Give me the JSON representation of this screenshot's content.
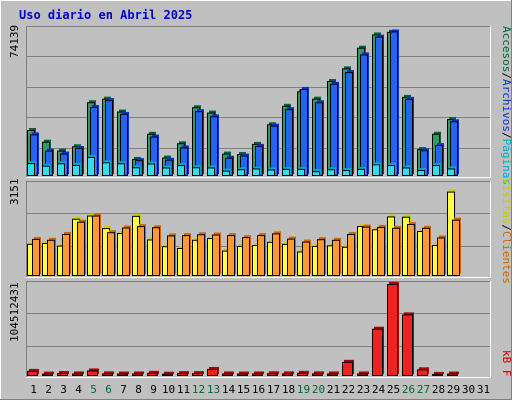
{
  "title": "Uso diario en Abril 2025",
  "colors": {
    "background": "#c0c0c0",
    "title": "#0000cc",
    "accesos_side": "#006633",
    "accesos_front": "#339966",
    "archivos_side": "#0033cc",
    "archivos_front": "#2266ee",
    "paginas_side": "#00aacc",
    "paginas_front": "#33ddee",
    "visitas_side": "#cccc00",
    "visitas_front": "#ffff44",
    "clientes_side": "#cc6600",
    "clientes_front": "#ff9933",
    "kbf_side": "#aa0000",
    "kbf_front": "#ee2222",
    "weekend_label": "#006633",
    "weekday_label": "#000000"
  },
  "chart_data": [
    {
      "type": "bar",
      "panel": "top",
      "ymax_label": "74139",
      "ylim": [
        0,
        74139
      ],
      "legend": [
        {
          "label": "Accesos",
          "color": "#006633"
        },
        {
          "label": "Archivos",
          "color": "#0033cc"
        },
        {
          "label": "Páginas",
          "color": "#00aacc"
        }
      ],
      "legend_separator": "/",
      "categories": [
        "1",
        "2",
        "3",
        "4",
        "5",
        "6",
        "7",
        "8",
        "9",
        "10",
        "11",
        "12",
        "13",
        "14",
        "15",
        "16",
        "17",
        "18",
        "19",
        "20",
        "21",
        "22",
        "23",
        "24",
        "25",
        "26",
        "27",
        "28",
        "29",
        "30",
        "31"
      ],
      "series": [
        {
          "name": "Accesos",
          "values": [
            23200,
            17300,
            12800,
            15000,
            37200,
            39000,
            32500,
            8600,
            21300,
            9300,
            16500,
            34700,
            32000,
            11300,
            11100,
            16200,
            26100,
            35400,
            42700,
            39000,
            47900,
            54300,
            64700,
            71400,
            72700,
            39900,
            13600,
            21300,
            28700,
            0,
            0
          ]
        },
        {
          "name": "Archivos",
          "values": [
            21000,
            12800,
            11300,
            14100,
            34800,
            38300,
            31300,
            8000,
            19900,
            8200,
            14400,
            32700,
            30100,
            9200,
            10300,
            15200,
            25400,
            33700,
            43900,
            37200,
            46500,
            52400,
            61300,
            70300,
            72900,
            38900,
            13000,
            15600,
            27600,
            0,
            0
          ]
        },
        {
          "name": "Páginas",
          "values": [
            6500,
            5200,
            6400,
            5600,
            9600,
            6900,
            6400,
            4400,
            6300,
            4300,
            5500,
            4400,
            4300,
            2700,
            3400,
            3800,
            3300,
            3600,
            3600,
            2400,
            3400,
            3000,
            3600,
            5900,
            5500,
            4300,
            3000,
            5500,
            3800,
            0,
            0
          ]
        }
      ]
    },
    {
      "type": "bar",
      "panel": "middle",
      "ymax_label": "3151",
      "ylim": [
        0,
        3151
      ],
      "legend": [
        {
          "label": "Visitas",
          "color": "#cccc00"
        },
        {
          "label": "Clientes",
          "color": "#cc6600"
        }
      ],
      "legend_separator": "/",
      "categories": [
        "1",
        "2",
        "3",
        "4",
        "5",
        "6",
        "7",
        "8",
        "9",
        "10",
        "11",
        "12",
        "13",
        "14",
        "15",
        "16",
        "17",
        "18",
        "19",
        "20",
        "21",
        "22",
        "23",
        "24",
        "25",
        "26",
        "27",
        "28",
        "29",
        "30",
        "31"
      ],
      "series": [
        {
          "name": "Visitas",
          "values": [
            1100,
            1130,
            1040,
            1960,
            2070,
            1640,
            1470,
            2060,
            1250,
            1020,
            960,
            1240,
            1300,
            870,
            1030,
            1060,
            1170,
            1100,
            840,
            1030,
            1050,
            1000,
            1710,
            1600,
            2040,
            2030,
            1540,
            1060,
            2890,
            0,
            0
          ]
        },
        {
          "name": "Clientes",
          "values": [
            1270,
            1240,
            1440,
            1860,
            2070,
            1500,
            1660,
            1710,
            1670,
            1390,
            1400,
            1430,
            1420,
            1400,
            1330,
            1400,
            1460,
            1280,
            1180,
            1260,
            1240,
            1440,
            1690,
            1680,
            1650,
            1780,
            1650,
            1320,
            1930,
            0,
            0
          ]
        }
      ]
    },
    {
      "type": "bar",
      "panel": "bottom",
      "ymax_label": "104512431",
      "ylim": [
        0,
        104512431
      ],
      "legend": [
        {
          "label": "kB F",
          "color": "#aa0000"
        }
      ],
      "categories": [
        "1",
        "2",
        "3",
        "4",
        "5",
        "6",
        "7",
        "8",
        "9",
        "10",
        "11",
        "12",
        "13",
        "14",
        "15",
        "16",
        "17",
        "18",
        "19",
        "20",
        "21",
        "22",
        "23",
        "24",
        "25",
        "26",
        "27",
        "28",
        "29",
        "30",
        "31"
      ],
      "weekend_days": [
        "5",
        "6",
        "12",
        "13",
        "19",
        "20",
        "26",
        "27"
      ],
      "series": [
        {
          "name": "kB F",
          "values": [
            5800000,
            2700000,
            3400000,
            2900000,
            6300000,
            3000000,
            2800000,
            2900000,
            3600000,
            2600000,
            3300000,
            3300000,
            8000000,
            2900000,
            2800000,
            2900000,
            3100000,
            3000000,
            3600000,
            3000000,
            2900000,
            16100000,
            2900000,
            53700000,
            104500000,
            70000000,
            7600000,
            2400000,
            2800000,
            0,
            0
          ]
        }
      ]
    }
  ]
}
